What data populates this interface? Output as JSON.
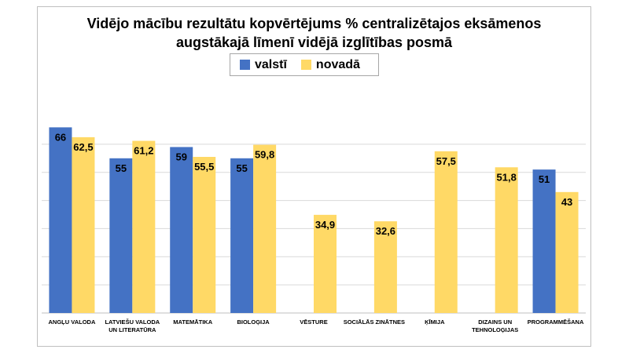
{
  "chart_data": {
    "type": "bar",
    "title_lines": [
      "Vidējo mācību rezultātu kopvērtējums % centralizētajos eksāmenos",
      "augstākajā līmenī vidējā izglītības posmā"
    ],
    "categories": [
      [
        "ANGĻU VALODA"
      ],
      [
        "LATVIEŠU VALODA",
        "UN LITERATŪRA"
      ],
      [
        "MATEMĀTIKA"
      ],
      [
        "BIOLOĢIJA"
      ],
      [
        "VĒSTURE"
      ],
      [
        "SOCIĀLĀS ZINĀTNES"
      ],
      [
        "ĶĪMIJA"
      ],
      [
        "DIZAINS UN",
        "TEHNOLOĢIJAS"
      ],
      [
        "PROGRAMMĒŠANA"
      ]
    ],
    "series": [
      {
        "name": "valstī",
        "color": "#4472c4",
        "values": [
          66,
          55,
          59,
          55,
          null,
          null,
          null,
          null,
          51
        ],
        "labels": [
          "66",
          "55",
          "59",
          "55",
          "",
          "",
          "",
          "",
          "51"
        ]
      },
      {
        "name": "novadā",
        "color": "#ffd966",
        "values": [
          62.5,
          61.2,
          55.5,
          59.8,
          34.9,
          32.6,
          57.5,
          51.8,
          43
        ],
        "labels": [
          "62,5",
          "61,2",
          "55,5",
          "59,8",
          "34,9",
          "32,6",
          "57,5",
          "51,8",
          "43"
        ]
      }
    ],
    "ylim": [
      0,
      70
    ],
    "gridlines": [
      10,
      20,
      30,
      40,
      50,
      60
    ],
    "grid": true,
    "legend_position": "top",
    "axis_labels_shown": false
  }
}
